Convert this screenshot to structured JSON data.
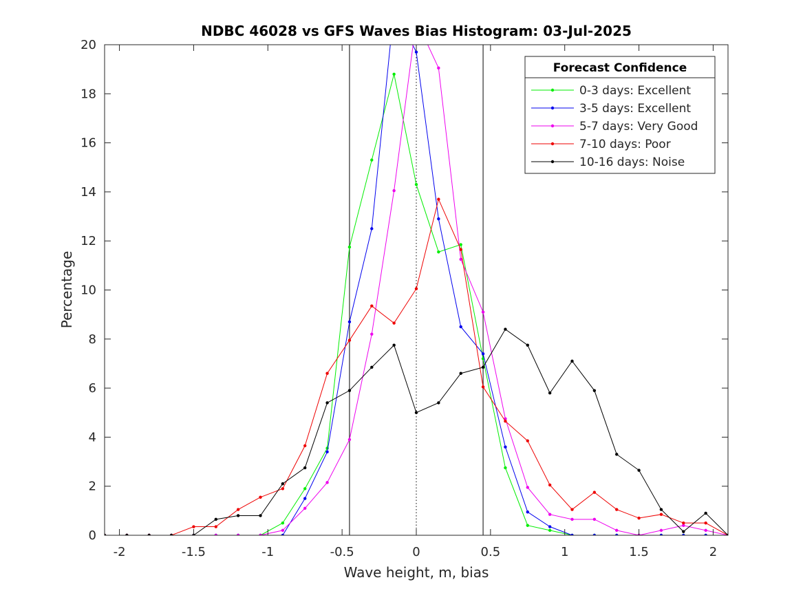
{
  "chart_data": {
    "type": "line",
    "title": "NDBC 46028 vs GFS Waves Bias Histogram: 03-Jul-2025",
    "xlabel": "Wave height, m, bias",
    "ylabel": "Percentage",
    "xlim": [
      -2.1,
      2.1
    ],
    "ylim": [
      0,
      20
    ],
    "xticks": [
      -2,
      -1.5,
      -1,
      -0.5,
      0,
      0.5,
      1,
      1.5,
      2
    ],
    "xtick_labels": [
      "-2",
      "-1.5",
      "-1",
      "-0.5",
      "0",
      "0.5",
      "1",
      "1.5",
      "2"
    ],
    "yticks": [
      0,
      2,
      4,
      6,
      8,
      10,
      12,
      14,
      16,
      18,
      20
    ],
    "ytick_labels": [
      "0",
      "2",
      "4",
      "6",
      "8",
      "10",
      "12",
      "14",
      "16",
      "18",
      "20"
    ],
    "vertical_lines": [
      {
        "x": -0.45,
        "style": "solid"
      },
      {
        "x": 0,
        "style": "dotted"
      },
      {
        "x": 0.45,
        "style": "solid"
      }
    ],
    "legend": {
      "title": "Forecast Confidence",
      "position": "top-right"
    },
    "x": [
      -2.1,
      -1.95,
      -1.8,
      -1.65,
      -1.5,
      -1.35,
      -1.2,
      -1.05,
      -0.9,
      -0.75,
      -0.6,
      -0.45,
      -0.3,
      -0.15,
      0,
      0.15,
      0.3,
      0.45,
      0.6,
      0.75,
      0.9,
      1.05,
      1.2,
      1.35,
      1.5,
      1.65,
      1.8,
      1.95,
      2.1
    ],
    "series": [
      {
        "name": "0-3 days: Excellent",
        "color": "#00ee00",
        "values": [
          0,
          0,
          0,
          0,
          0,
          0,
          0,
          0,
          0.5,
          1.9,
          3.55,
          11.75,
          15.3,
          18.8,
          14.3,
          11.55,
          11.85,
          7.2,
          2.75,
          0.4,
          0.2,
          0,
          0,
          0,
          0,
          0,
          0,
          0,
          0
        ]
      },
      {
        "name": "3-5 days: Excellent",
        "color": "#0000ee",
        "values": [
          0,
          0,
          0,
          0,
          0,
          0,
          0,
          0,
          0,
          1.5,
          3.4,
          8.7,
          12.5,
          21.5,
          19.7,
          12.9,
          8.5,
          7.4,
          3.6,
          0.95,
          0.35,
          0,
          0,
          0,
          0,
          0,
          0,
          0,
          0
        ]
      },
      {
        "name": "5-7 days: Very Good",
        "color": "#ee00ee",
        "values": [
          0,
          0,
          0,
          0,
          0,
          0,
          0,
          0,
          0.2,
          1.1,
          2.15,
          3.9,
          8.2,
          14.05,
          21.0,
          19.05,
          11.25,
          9.1,
          4.75,
          1.95,
          0.85,
          0.65,
          0.65,
          0.2,
          0,
          0.2,
          0.4,
          0.2,
          0
        ]
      },
      {
        "name": "7-10 days: Poor",
        "color": "#ee0000",
        "values": [
          0,
          0,
          0,
          0,
          0.35,
          0.35,
          1.05,
          1.55,
          1.9,
          3.65,
          6.6,
          7.95,
          9.35,
          8.65,
          10.05,
          13.7,
          11.65,
          6.05,
          4.65,
          3.85,
          2.05,
          1.05,
          1.75,
          1.05,
          0.7,
          0.85,
          0.5,
          0.5,
          0
        ]
      },
      {
        "name": "10-16 days: Noise",
        "color": "#000000",
        "values": [
          0,
          0,
          0,
          0,
          0,
          0.65,
          0.8,
          0.8,
          2.1,
          2.75,
          5.4,
          5.9,
          6.85,
          7.75,
          5.0,
          5.4,
          6.6,
          6.85,
          8.4,
          7.75,
          5.8,
          7.1,
          5.9,
          3.3,
          2.65,
          1.05,
          0.15,
          0.9,
          0
        ]
      }
    ]
  }
}
